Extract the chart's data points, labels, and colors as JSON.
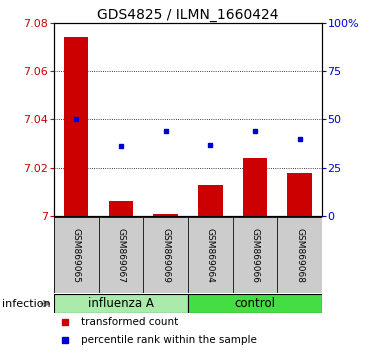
{
  "title": "GDS4825 / ILMN_1660424",
  "samples": [
    "GSM869065",
    "GSM869067",
    "GSM869069",
    "GSM869064",
    "GSM869066",
    "GSM869068"
  ],
  "red_values": [
    7.074,
    7.006,
    7.001,
    7.013,
    7.024,
    7.018
  ],
  "blue_percentiles": [
    50,
    36,
    44,
    37,
    44,
    40
  ],
  "ylim_left": [
    7.0,
    7.08
  ],
  "ylim_right": [
    0,
    100
  ],
  "yticks_left": [
    7.0,
    7.02,
    7.04,
    7.06,
    7.08
  ],
  "yticks_right": [
    0,
    25,
    50,
    75,
    100
  ],
  "ytick_labels_left": [
    "7",
    "7.02",
    "7.04",
    "7.06",
    "7.08"
  ],
  "ytick_labels_right": [
    "0",
    "25",
    "50",
    "75",
    "100%"
  ],
  "groups": [
    {
      "label": "influenza A",
      "indices": [
        0,
        1,
        2
      ],
      "color": "#aaeaaa"
    },
    {
      "label": "control",
      "indices": [
        3,
        4,
        5
      ],
      "color": "#44dd44"
    }
  ],
  "group_label": "infection",
  "bar_color": "#cc0000",
  "dot_color": "#0000cc",
  "bar_width": 0.55,
  "background_color": "#ffffff",
  "sample_box_color": "#cccccc",
  "legend_items": [
    {
      "color": "#cc0000",
      "label": "transformed count"
    },
    {
      "color": "#0000cc",
      "label": "percentile rank within the sample"
    }
  ]
}
